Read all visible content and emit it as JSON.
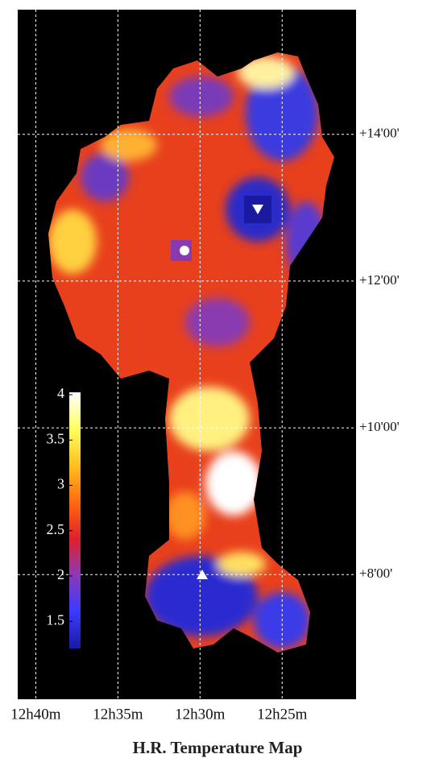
{
  "chart_data": {
    "type": "image-map",
    "title": "H.R. Temperature Map",
    "xlim": [
      41.1,
      20.5
    ],
    "xticks": [
      {
        "value": 40,
        "label": "12h40m"
      },
      {
        "value": 35,
        "label": "12h35m"
      },
      {
        "value": 30,
        "label": "12h30m"
      },
      {
        "value": 25,
        "label": "12h25m"
      }
    ],
    "ylim": [
      6.3,
      15.7
    ],
    "yticks": [
      {
        "value": 14,
        "label": "+14'00'"
      },
      {
        "value": 12,
        "label": "+12'00'"
      },
      {
        "value": 10,
        "label": "+10'00'"
      },
      {
        "value": 8,
        "label": "+8'00'"
      }
    ],
    "grid": true,
    "colorbar": {
      "lim": [
        1.2,
        4
      ],
      "ticks": [
        1.5,
        2,
        2.5,
        3,
        3.5,
        4
      ],
      "colors": [
        "#1a1aa0",
        "#3a3aff",
        "#8a3ab8",
        "#e0202a",
        "#ff6a10",
        "#ffc020",
        "#ffff60",
        "#ffffff"
      ]
    }
  }
}
